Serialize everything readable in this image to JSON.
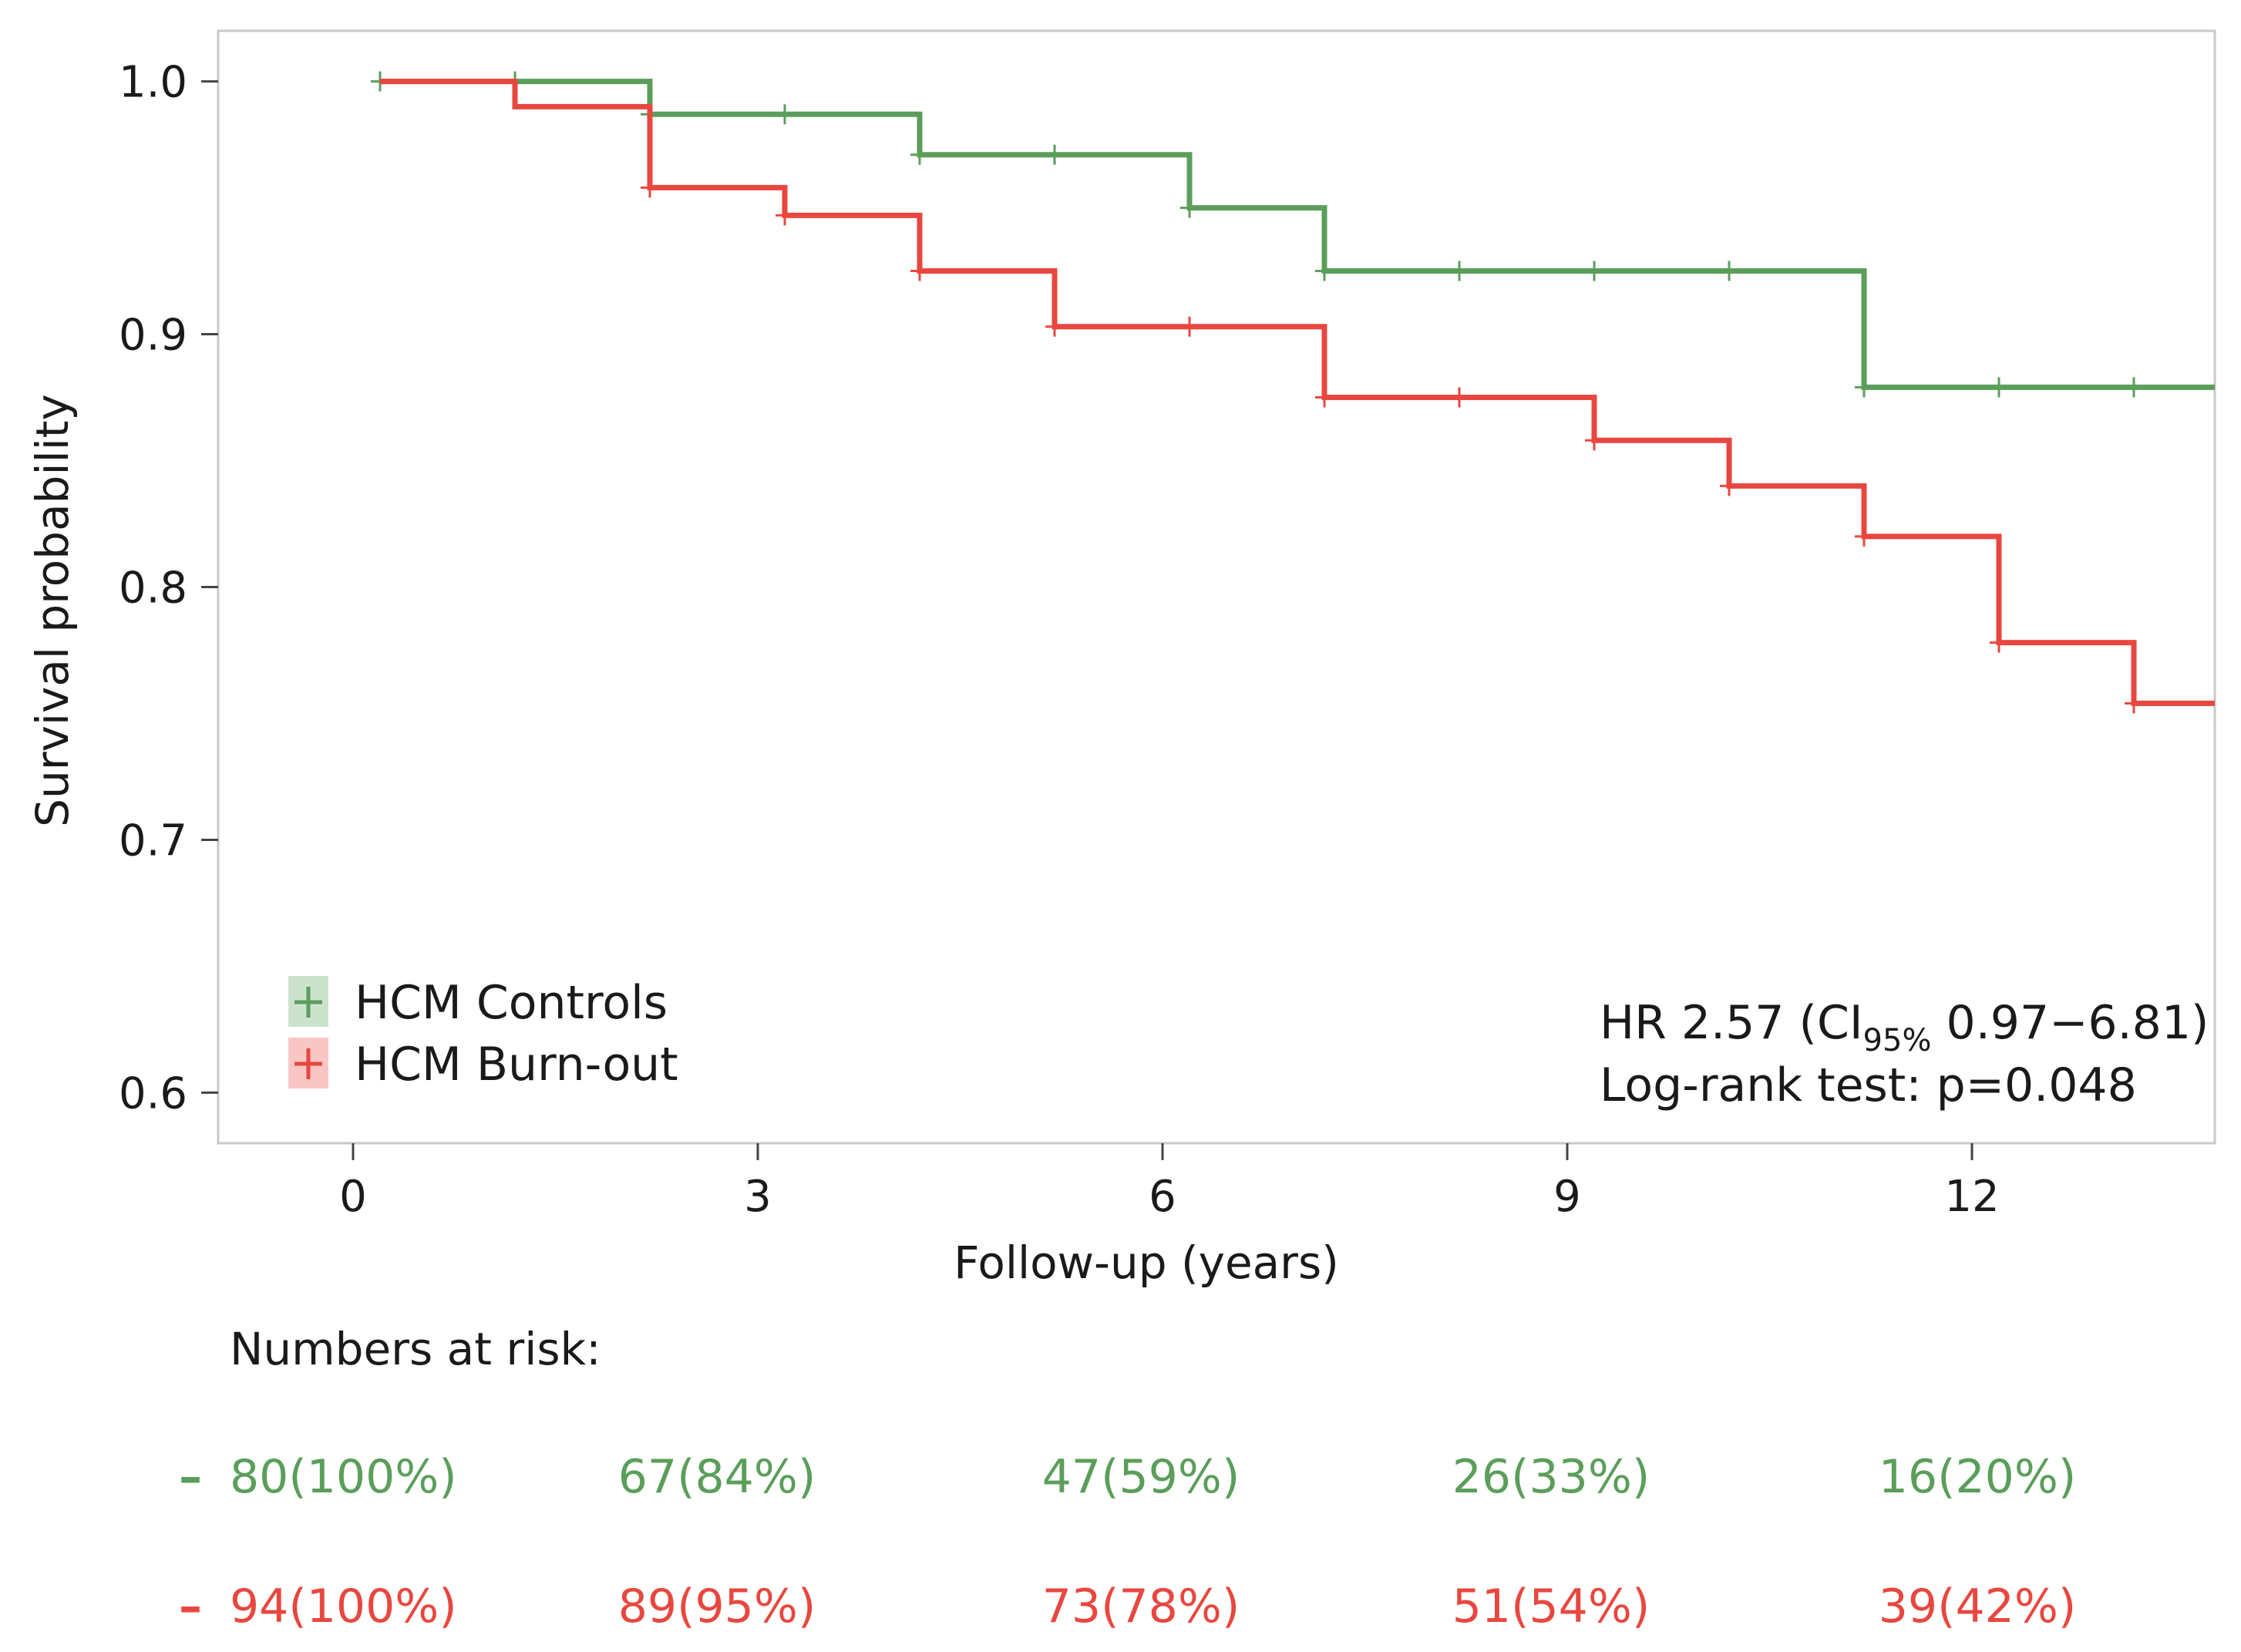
{
  "chart_data": {
    "type": "line",
    "subtype": "kaplan-meier",
    "xlabel": "Follow-up (years)",
    "ylabel": "Survival probability",
    "xlim": [
      -1,
      13.8
    ],
    "ylim": [
      0.58,
      1.02
    ],
    "x_ticks": [
      0,
      3,
      6,
      9,
      12
    ],
    "x_tick_labels": [
      "0",
      "3",
      "6",
      "9",
      "12"
    ],
    "y_ticks": [
      0.6,
      0.7,
      0.8,
      0.9,
      1.0
    ],
    "y_tick_labels": [
      "0.6",
      "0.7",
      "0.8",
      "0.9",
      "1.0"
    ],
    "series": [
      {
        "name": "HCM Controls",
        "color": "#5a9e5a",
        "steps": [
          [
            0.2,
            1.0
          ],
          [
            2.2,
            0.987
          ],
          [
            4.2,
            0.971
          ],
          [
            6.2,
            0.95
          ],
          [
            7.2,
            0.925
          ],
          [
            11.2,
            0.879
          ]
        ],
        "end_x": 13.8,
        "censor": [
          [
            0.2,
            1.0
          ],
          [
            1.2,
            1.0
          ],
          [
            2.2,
            0.987
          ],
          [
            3.2,
            0.987
          ],
          [
            4.2,
            0.971
          ],
          [
            5.2,
            0.971
          ],
          [
            6.2,
            0.95
          ],
          [
            7.2,
            0.925
          ],
          [
            8.2,
            0.925
          ],
          [
            9.2,
            0.925
          ],
          [
            10.2,
            0.925
          ],
          [
            11.2,
            0.879
          ],
          [
            12.2,
            0.879
          ],
          [
            13.2,
            0.879
          ]
        ]
      },
      {
        "name": "HCM Burn-out",
        "color": "#e8473f",
        "steps": [
          [
            0.2,
            1.0
          ],
          [
            1.2,
            0.99
          ],
          [
            2.2,
            0.958
          ],
          [
            3.2,
            0.947
          ],
          [
            4.2,
            0.925
          ],
          [
            5.2,
            0.903
          ],
          [
            7.2,
            0.875
          ],
          [
            9.2,
            0.858
          ],
          [
            10.2,
            0.84
          ],
          [
            11.2,
            0.82
          ],
          [
            12.2,
            0.778
          ],
          [
            13.2,
            0.754
          ]
        ],
        "end_x": 13.8,
        "censor": [
          [
            2.2,
            0.958
          ],
          [
            3.2,
            0.947
          ],
          [
            4.2,
            0.925
          ],
          [
            5.2,
            0.903
          ],
          [
            6.2,
            0.903
          ],
          [
            7.2,
            0.875
          ],
          [
            8.2,
            0.875
          ],
          [
            9.2,
            0.858
          ],
          [
            10.2,
            0.84
          ],
          [
            11.2,
            0.82
          ],
          [
            12.2,
            0.778
          ],
          [
            13.2,
            0.754
          ]
        ]
      }
    ],
    "legend": [
      "HCM Controls",
      "HCM Burn-out"
    ],
    "legend_position": "bottom-left",
    "annotations": {
      "hr_prefix": "HR 2.57 (CI",
      "hr_subscript": "95%",
      "hr_suffix": " 0.97−6.81)",
      "logrank": "Log-rank test: p=0.048"
    }
  },
  "risk_table": {
    "title": "Numbers at risk:",
    "rows": [
      {
        "name": "HCM Controls",
        "color": "#5a9e5a",
        "dash": "–",
        "values": [
          "80(100%)",
          "67(84%)",
          "47(59%)",
          "26(33%)",
          "16(20%)"
        ]
      },
      {
        "name": "HCM Burn-out",
        "color": "#e8473f",
        "dash": "–",
        "values": [
          "94(100%)",
          "89(95%)",
          "73(78%)",
          "51(54%)",
          "39(42%)"
        ]
      }
    ]
  }
}
